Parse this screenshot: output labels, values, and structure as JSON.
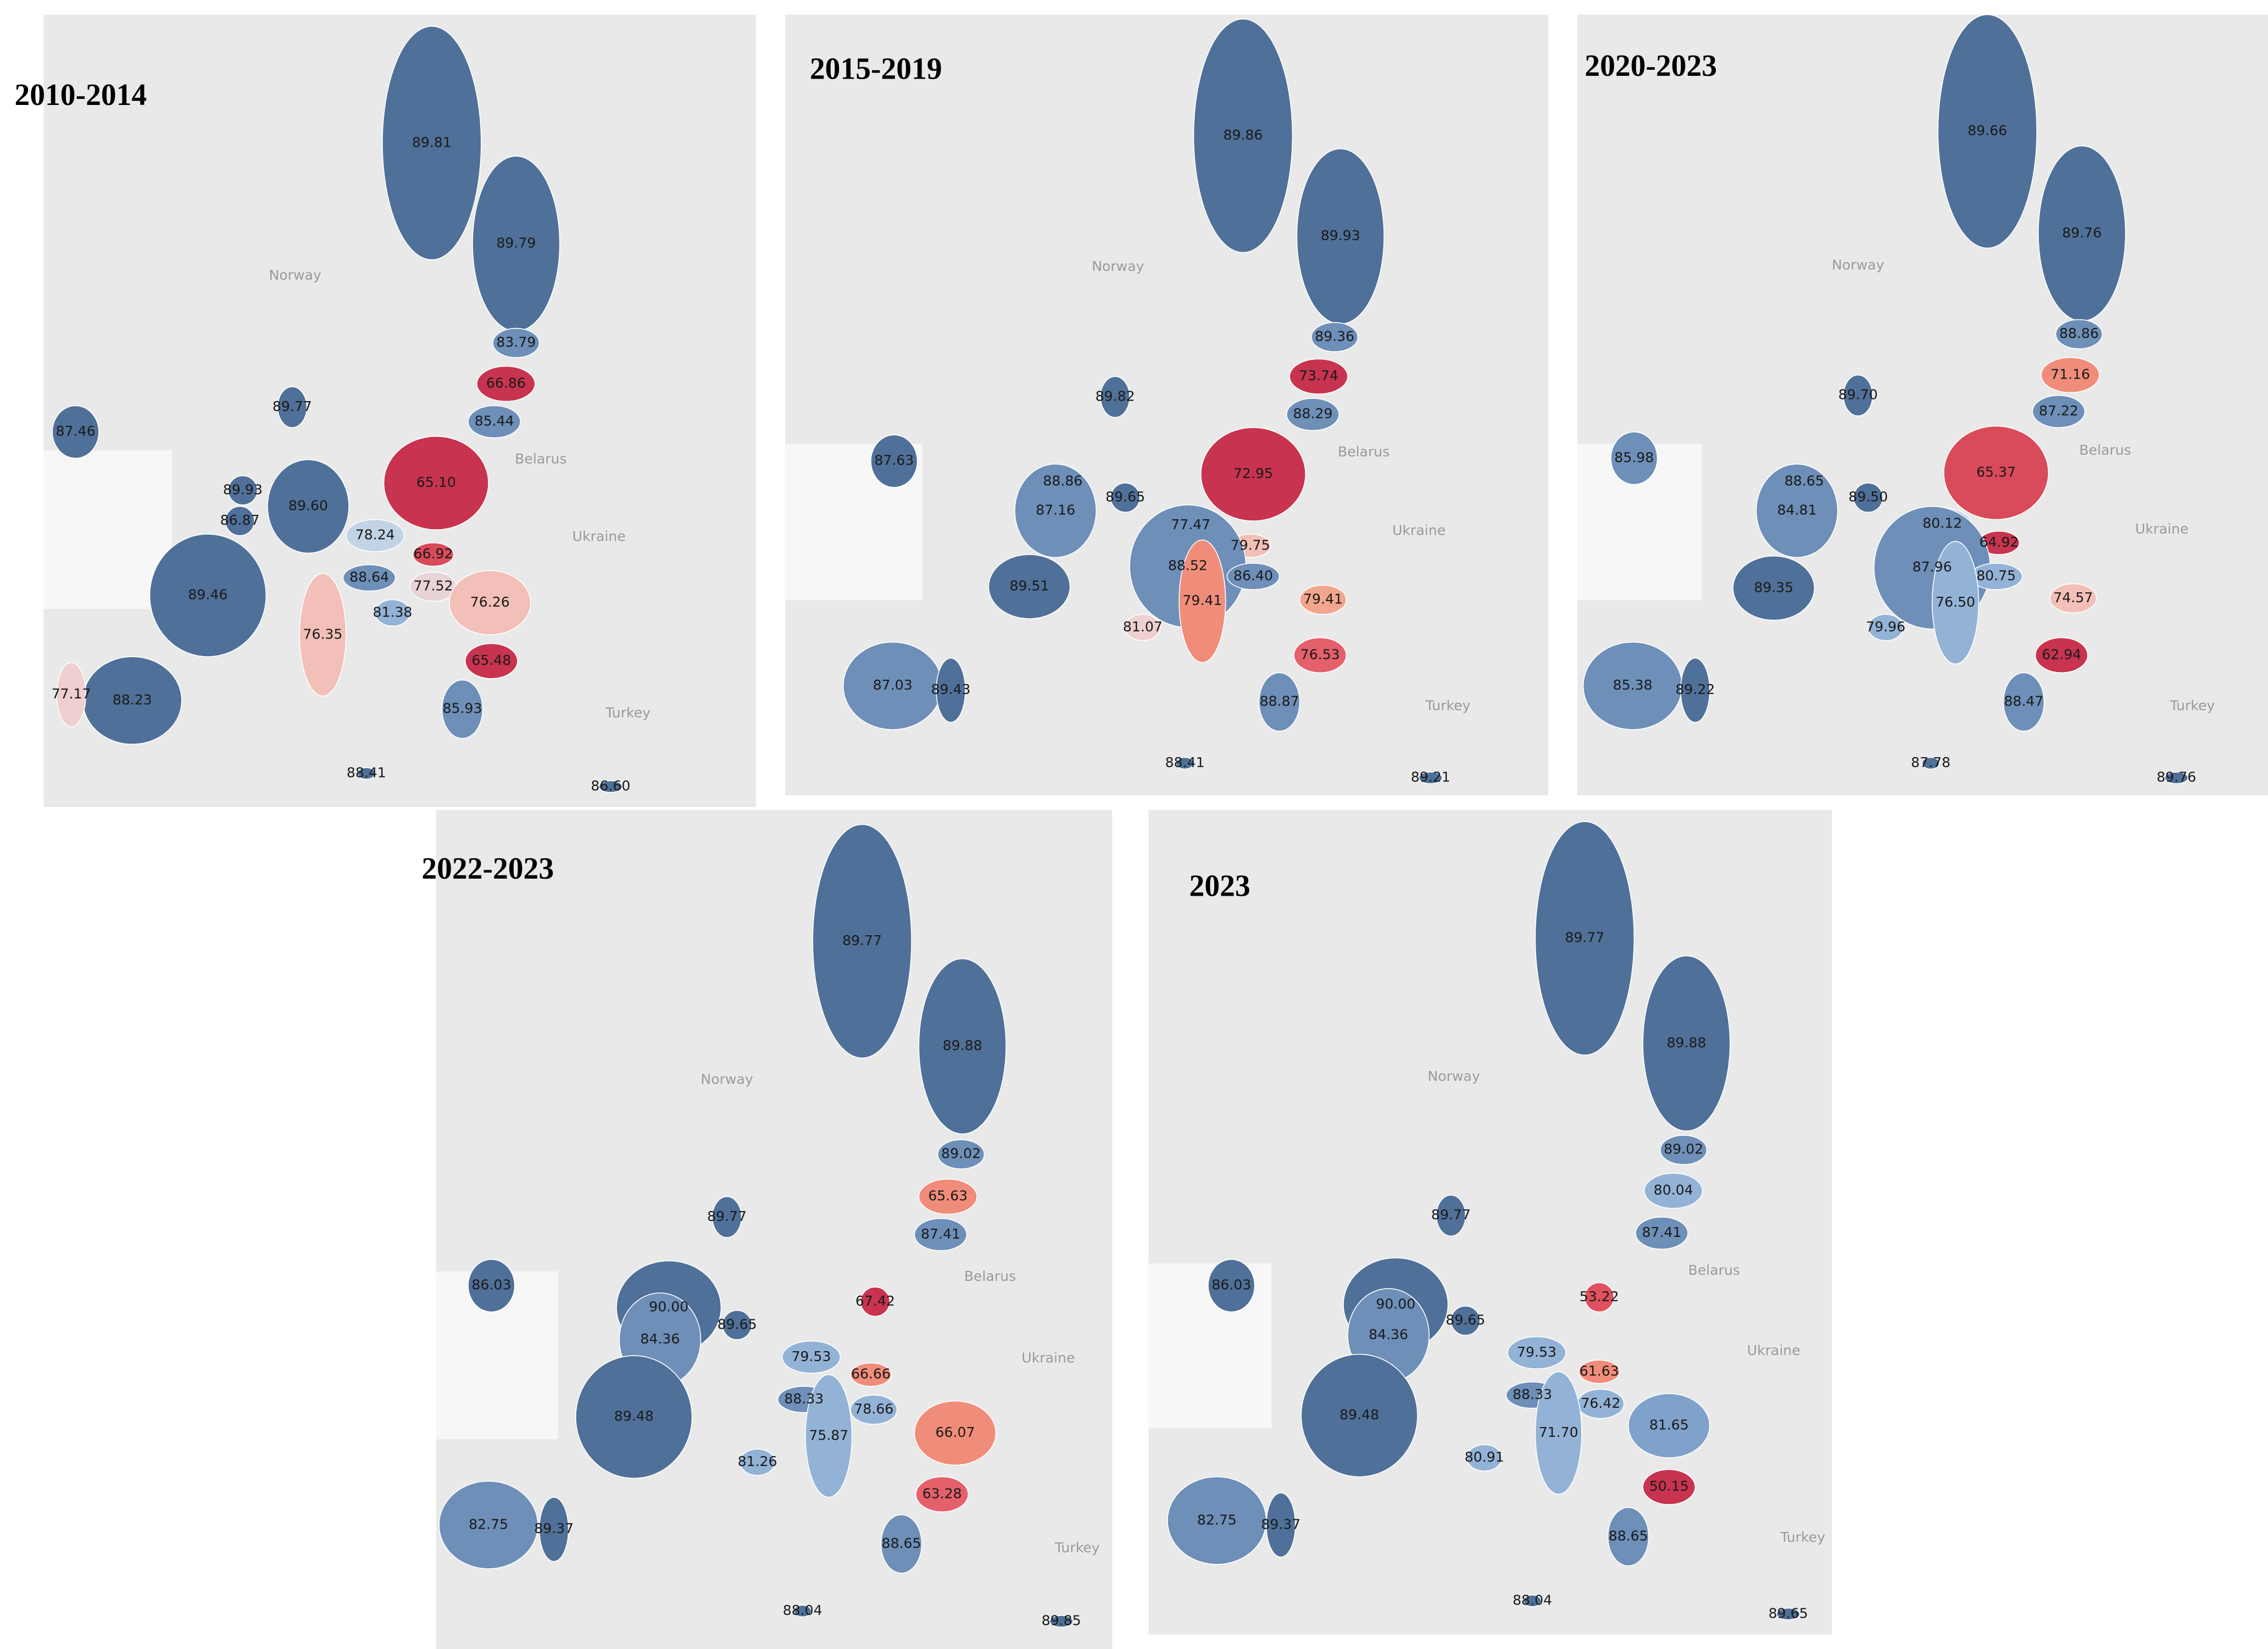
{
  "panels": [
    {
      "title": "2010-2014",
      "place_names": [
        "Norway",
        "Belarus",
        "Ukraine",
        "Turkey"
      ],
      "regions": [
        {
          "value": 89.81,
          "color": "#4f7098"
        },
        {
          "value": 89.79,
          "color": "#4f7098"
        },
        {
          "value": 83.79,
          "color": "#6d8fb8"
        },
        {
          "value": 66.86,
          "color": "#c8334f"
        },
        {
          "value": 85.44,
          "color": "#6d8fb8"
        },
        {
          "value": 89.77,
          "color": "#4f7098"
        },
        {
          "value": 87.46,
          "color": "#4f7098"
        },
        {
          "value": 65.1,
          "label": "65.10",
          "color": "#c8334f"
        },
        {
          "value": 89.93,
          "color": "#4f7098"
        },
        {
          "value": 89.6,
          "label": "89.60",
          "color": "#4f7098"
        },
        {
          "value": 86.87,
          "color": "#4f7098"
        },
        {
          "value": 78.24,
          "color": "#c3d3e6"
        },
        {
          "value": 66.92,
          "color": "#d94a5a"
        },
        {
          "value": 89.46,
          "color": "#4f7098"
        },
        {
          "value": 88.64,
          "color": "#6d8fb8"
        },
        {
          "value": 77.52,
          "color": "#e8d3d6"
        },
        {
          "value": 76.26,
          "color": "#f2c0b8"
        },
        {
          "value": 76.35,
          "color": "#f2c0b8"
        },
        {
          "value": 81.38,
          "color": "#93b3d6"
        },
        {
          "value": 65.48,
          "color": "#c8334f"
        },
        {
          "value": 88.23,
          "color": "#4f7098"
        },
        {
          "value": 77.17,
          "color": "#efcfcf"
        },
        {
          "value": 85.93,
          "color": "#6d8fb8"
        },
        {
          "value": 88.41,
          "color": "#4f7098"
        },
        {
          "value": 86.6,
          "label": "86.60",
          "color": "#4f7098"
        }
      ]
    },
    {
      "title": "2015-2019",
      "place_names": [
        "Norway",
        "Belarus",
        "Ukraine",
        "Turkey"
      ],
      "regions": [
        {
          "value": 89.86,
          "color": "#4f7098"
        },
        {
          "value": 89.93,
          "color": "#4f7098"
        },
        {
          "value": 89.36,
          "color": "#6d8fb8"
        },
        {
          "value": 73.74,
          "color": "#c8334f"
        },
        {
          "value": 88.29,
          "color": "#6d8fb8"
        },
        {
          "value": 89.82,
          "color": "#4f7098"
        },
        {
          "value": 87.63,
          "color": "#4f7098"
        },
        {
          "value": 72.95,
          "color": "#c8334f"
        },
        {
          "value": 88.86,
          "color": "#4f7098"
        },
        {
          "value": 87.16,
          "color": "#6d8fb8"
        },
        {
          "value": 89.65,
          "color": "#4f7098"
        },
        {
          "value": 77.47,
          "color": "#f08d7a"
        },
        {
          "value": 79.75,
          "color": "#f2c0b8"
        },
        {
          "value": 88.52,
          "color": "#6d8fb8"
        },
        {
          "value": 86.4,
          "label": "86.40",
          "color": "#6d8fb8"
        },
        {
          "value": 79.41,
          "color": "#f3a68f"
        },
        {
          "value": 89.51,
          "color": "#4f7098"
        },
        {
          "value": 79.41,
          "color": "#f08d7a"
        },
        {
          "value": 81.07,
          "color": "#efcfcf"
        },
        {
          "value": 76.53,
          "color": "#e4606a"
        },
        {
          "value": 87.03,
          "color": "#6d8fb8"
        },
        {
          "value": 89.43,
          "color": "#4f7098"
        },
        {
          "value": 88.87,
          "color": "#6d8fb8"
        },
        {
          "value": 88.41,
          "color": "#4f7098"
        },
        {
          "value": 89.21,
          "color": "#4f7098"
        }
      ]
    },
    {
      "title": "2020-2023",
      "place_names": [
        "Norway",
        "Belarus",
        "Ukraine",
        "Turkey"
      ],
      "regions": [
        {
          "value": 89.66,
          "color": "#4f7098"
        },
        {
          "value": 89.76,
          "color": "#4f7098"
        },
        {
          "value": 88.86,
          "color": "#6d8fb8"
        },
        {
          "value": 71.16,
          "color": "#f08d7a"
        },
        {
          "value": 87.22,
          "color": "#6d8fb8"
        },
        {
          "value": 89.7,
          "label": "89.70",
          "color": "#4f7098"
        },
        {
          "value": 85.98,
          "color": "#6d8fb8"
        },
        {
          "value": 65.37,
          "color": "#d94a5a"
        },
        {
          "value": 88.65,
          "color": "#4f7098"
        },
        {
          "value": 84.81,
          "color": "#6d8fb8"
        },
        {
          "value": 89.5,
          "label": "89.50",
          "color": "#4f7098"
        },
        {
          "value": 80.12,
          "color": "#c3d3e6"
        },
        {
          "value": 64.92,
          "color": "#c8334f"
        },
        {
          "value": 87.96,
          "color": "#6d8fb8"
        },
        {
          "value": 80.75,
          "color": "#93b3d6"
        },
        {
          "value": 74.57,
          "color": "#f2c0b8"
        },
        {
          "value": 89.35,
          "color": "#4f7098"
        },
        {
          "value": 76.5,
          "label": "76.50",
          "color": "#93b3d6"
        },
        {
          "value": 79.96,
          "color": "#93b3d6"
        },
        {
          "value": 62.94,
          "color": "#c8334f"
        },
        {
          "value": 85.38,
          "color": "#6d8fb8"
        },
        {
          "value": 89.22,
          "color": "#4f7098"
        },
        {
          "value": 88.47,
          "color": "#6d8fb8"
        },
        {
          "value": 87.78,
          "color": "#4f7098"
        },
        {
          "value": 89.76,
          "color": "#4f7098"
        }
      ]
    },
    {
      "title": "2022-2023",
      "place_names": [
        "Norway",
        "Belarus",
        "Ukraine",
        "Turkey"
      ],
      "regions": [
        {
          "value": 89.77,
          "color": "#4f7098"
        },
        {
          "value": 89.88,
          "color": "#4f7098"
        },
        {
          "value": 89.02,
          "color": "#6d8fb8"
        },
        {
          "value": 65.63,
          "color": "#f08d7a"
        },
        {
          "value": 87.41,
          "color": "#6d8fb8"
        },
        {
          "value": 89.77,
          "color": "#4f7098"
        },
        {
          "value": 86.03,
          "color": "#4f7098"
        },
        {
          "value": 90,
          "label": "90.00",
          "color": "#4f7098"
        },
        {
          "value": 67.42,
          "color": "#c8334f"
        },
        {
          "value": 84.36,
          "color": "#6d8fb8"
        },
        {
          "value": 89.65,
          "color": "#4f7098"
        },
        {
          "value": 79.53,
          "color": "#93b3d6"
        },
        {
          "value": 66.66,
          "color": "#f08d7a"
        },
        {
          "value": 89.48,
          "color": "#4f7098"
        },
        {
          "value": 88.33,
          "color": "#6d8fb8"
        },
        {
          "value": 78.66,
          "color": "#93b3d6"
        },
        {
          "value": 66.07,
          "color": "#f08d7a"
        },
        {
          "value": 75.87,
          "color": "#93b3d6"
        },
        {
          "value": 81.26,
          "color": "#93b3d6"
        },
        {
          "value": 63.28,
          "color": "#e4606a"
        },
        {
          "value": 82.75,
          "color": "#6d8fb8"
        },
        {
          "value": 89.37,
          "color": "#4f7098"
        },
        {
          "value": 88.65,
          "color": "#6d8fb8"
        },
        {
          "value": 88.04,
          "color": "#4f7098"
        },
        {
          "value": 89.85,
          "color": "#4f7098"
        }
      ]
    },
    {
      "title": "2023",
      "place_names": [
        "Norway",
        "Belarus",
        "Ukraine",
        "Turkey"
      ],
      "regions": [
        {
          "value": 89.77,
          "color": "#4f7098"
        },
        {
          "value": 89.88,
          "color": "#4f7098"
        },
        {
          "value": 89.02,
          "color": "#6d8fb8"
        },
        {
          "value": 80.04,
          "color": "#93b3d6"
        },
        {
          "value": 87.41,
          "color": "#6d8fb8"
        },
        {
          "value": 89.77,
          "color": "#4f7098"
        },
        {
          "value": 86.03,
          "color": "#4f7098"
        },
        {
          "value": 90,
          "label": "90.00",
          "color": "#4f7098"
        },
        {
          "value": 53.22,
          "color": "#e0505e"
        },
        {
          "value": 84.36,
          "color": "#6d8fb8"
        },
        {
          "value": 89.65,
          "color": "#4f7098"
        },
        {
          "value": 79.53,
          "color": "#93b3d6"
        },
        {
          "value": 61.63,
          "color": "#f08d7a"
        },
        {
          "value": 89.48,
          "color": "#4f7098"
        },
        {
          "value": 88.33,
          "color": "#6d8fb8"
        },
        {
          "value": 76.42,
          "color": "#93b3d6"
        },
        {
          "value": 81.65,
          "color": "#7fa2cb"
        },
        {
          "value": 71.7,
          "label": "71.70",
          "color": "#93b3d6"
        },
        {
          "value": 80.91,
          "color": "#93b3d6"
        },
        {
          "value": 50.15,
          "color": "#c8334f"
        },
        {
          "value": 82.75,
          "color": "#6d8fb8"
        },
        {
          "value": 89.37,
          "color": "#4f7098"
        },
        {
          "value": 88.65,
          "color": "#6d8fb8"
        },
        {
          "value": 88.04,
          "color": "#4f7098"
        },
        {
          "value": 89.65,
          "color": "#4f7098"
        }
      ]
    }
  ]
}
